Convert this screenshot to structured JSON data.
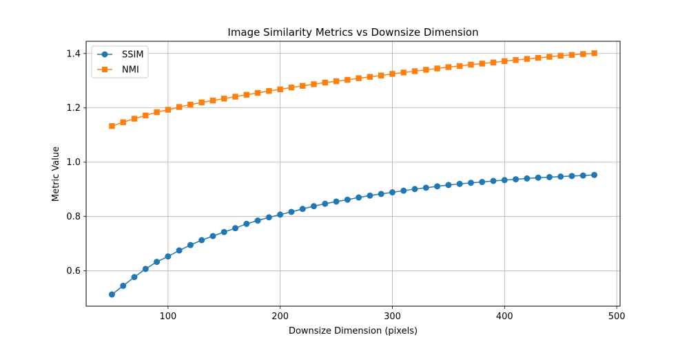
{
  "chart_data": {
    "type": "line",
    "title": "Image Similarity Metrics vs Downsize Dimension",
    "xlabel": "Downsize Dimension (pixels)",
    "ylabel": "Metric Value",
    "xlim": [
      27,
      503
    ],
    "ylim": [
      0.47,
      1.445
    ],
    "x_ticks": [
      100,
      200,
      300,
      400,
      500
    ],
    "y_ticks": [
      0.6,
      0.8,
      1.0,
      1.2,
      1.4
    ],
    "x_tick_labels": [
      "100",
      "200",
      "300",
      "400",
      "500"
    ],
    "y_tick_labels": [
      "0.6",
      "0.8",
      "1.0",
      "1.2",
      "1.4"
    ],
    "grid": true,
    "legend_position": "top-left",
    "x": [
      50,
      60,
      70,
      80,
      90,
      100,
      110,
      120,
      130,
      140,
      150,
      160,
      170,
      180,
      190,
      200,
      210,
      220,
      230,
      240,
      250,
      260,
      270,
      280,
      290,
      300,
      310,
      320,
      330,
      340,
      350,
      360,
      370,
      380,
      390,
      400,
      410,
      420,
      430,
      440,
      450,
      460,
      470,
      480
    ],
    "series": [
      {
        "name": "SSIM",
        "color": "#1f77b4",
        "marker": "circle",
        "values": [
          0.513,
          0.545,
          0.577,
          0.607,
          0.633,
          0.653,
          0.675,
          0.695,
          0.713,
          0.728,
          0.743,
          0.757,
          0.773,
          0.785,
          0.797,
          0.807,
          0.817,
          0.828,
          0.838,
          0.847,
          0.855,
          0.862,
          0.87,
          0.877,
          0.883,
          0.889,
          0.895,
          0.901,
          0.906,
          0.911,
          0.916,
          0.92,
          0.924,
          0.927,
          0.931,
          0.934,
          0.937,
          0.94,
          0.943,
          0.945,
          0.947,
          0.949,
          0.951,
          0.953
        ]
      },
      {
        "name": "NMI",
        "color": "#ff7f0e",
        "marker": "square",
        "values": [
          1.133,
          1.147,
          1.16,
          1.172,
          1.184,
          1.193,
          1.203,
          1.212,
          1.22,
          1.227,
          1.234,
          1.241,
          1.248,
          1.255,
          1.262,
          1.268,
          1.275,
          1.281,
          1.287,
          1.293,
          1.298,
          1.303,
          1.309,
          1.314,
          1.319,
          1.325,
          1.33,
          1.335,
          1.34,
          1.345,
          1.35,
          1.354,
          1.359,
          1.363,
          1.367,
          1.372,
          1.376,
          1.38,
          1.384,
          1.388,
          1.392,
          1.395,
          1.398,
          1.401
        ]
      }
    ]
  }
}
